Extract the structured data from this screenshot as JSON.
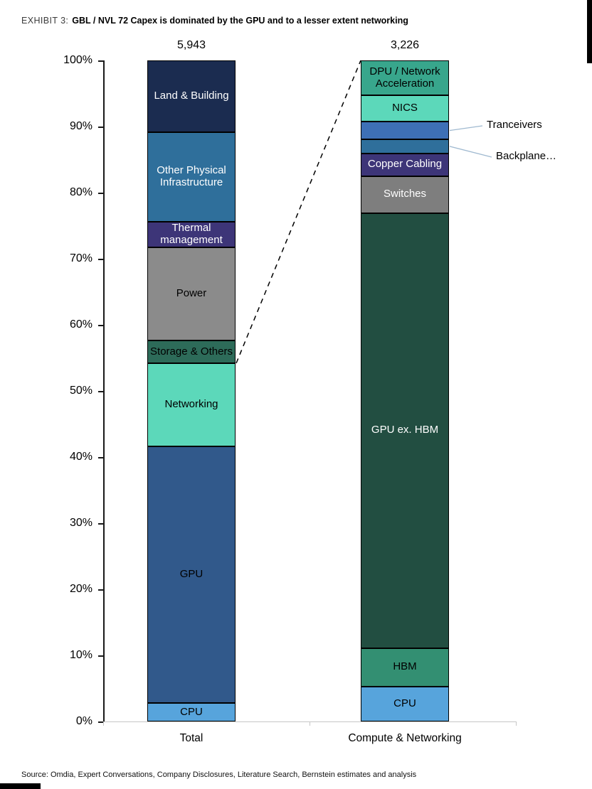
{
  "exhibit": {
    "label": "EXHIBIT 3:",
    "title": "GBL / NVL 72 Capex is dominated by the GPU and to a lesser extent networking"
  },
  "source": "Source: Omdia, Expert Conversations, Company Disclosures, Literature Search, Bernstein estimates and analysis",
  "chart_data": {
    "type": "bar",
    "variant": "stacked-100-percent",
    "title": "GBL / NVL 72 Capex is dominated by the GPU and to a lesser extent networking",
    "ylim": [
      0,
      100
    ],
    "yticks": [
      "0%",
      "10%",
      "20%",
      "30%",
      "40%",
      "50%",
      "60%",
      "70%",
      "80%",
      "90%",
      "100%"
    ],
    "grid": false,
    "legend": "none (labels inside segments)",
    "categories": [
      "Total",
      "Compute & Networking"
    ],
    "bars": [
      {
        "category": "Total",
        "total_label": "5,943",
        "segments": [
          {
            "name": "CPU",
            "label": "CPU",
            "value": 2.8,
            "color": "#57A4DC",
            "label_color": "#000000"
          },
          {
            "name": "GPU",
            "label": "GPU",
            "value": 38.8,
            "color": "#31598B",
            "label_color": "#000000"
          },
          {
            "name": "Networking",
            "label": "Networking",
            "value": 12.6,
            "color": "#5CD8BA",
            "label_color": "#000000"
          },
          {
            "name": "Storage & Others",
            "label": "Storage & Others",
            "value": 3.4,
            "color": "#2D6B59",
            "label_color": "#000000"
          },
          {
            "name": "Power",
            "label": "Power",
            "value": 14.1,
            "color": "#8B8B8B",
            "label_color": "#000000"
          },
          {
            "name": "Thermal management",
            "label": "Thermal management",
            "value": 3.9,
            "color": "#3D3578",
            "label_color": "#FFFFFF"
          },
          {
            "name": "Other Physical Infrastructure",
            "label": "Other Physical Infrastructure",
            "value": 13.5,
            "color": "#2F6F9B",
            "label_color": "#FFFFFF"
          },
          {
            "name": "Land & Building",
            "label": "Land & Building",
            "value": 10.9,
            "color": "#1B2C50",
            "label_color": "#FFFFFF"
          }
        ]
      },
      {
        "category": "Compute & Networking",
        "total_label": "3,226",
        "segments": [
          {
            "name": "CPU",
            "label": "CPU",
            "value": 5.3,
            "color": "#57A4DC",
            "label_color": "#000000"
          },
          {
            "name": "HBM",
            "label": "HBM",
            "value": 5.8,
            "color": "#338F72",
            "label_color": "#000000"
          },
          {
            "name": "GPU ex. HBM",
            "label": "GPU ex. HBM",
            "value": 65.8,
            "color": "#224E41",
            "label_color": "#FFFFFF"
          },
          {
            "name": "Switches",
            "label": "Switches",
            "value": 5.6,
            "color": "#7E7E7E",
            "label_color": "#FFFFFF"
          },
          {
            "name": "Copper Cabling",
            "label": "Copper Cabling",
            "value": 3.4,
            "color": "#3D3578",
            "label_color": "#FFFFFF"
          },
          {
            "name": "Backplane",
            "label": "",
            "value": 2.2,
            "color": "#2F6F9B",
            "label_color": "#FFFFFF"
          },
          {
            "name": "Tranceivers",
            "label": "",
            "value": 2.6,
            "color": "#3E70B6",
            "label_color": "#FFFFFF"
          },
          {
            "name": "NICS",
            "label": "NICS",
            "value": 4.0,
            "color": "#5CD8BA",
            "label_color": "#000000"
          },
          {
            "name": "DPU / Network Acceleration",
            "label": "DPU / Network Acceleration",
            "value": 5.3,
            "color": "#38A68C",
            "label_color": "#000000"
          }
        ]
      }
    ],
    "annotations": [
      {
        "text": "Tranceivers",
        "bar": 1,
        "segment": "Tranceivers"
      },
      {
        "text": "Backplane…",
        "bar": 1,
        "segment": "Backplane"
      }
    ],
    "zoom_line": {
      "from_bar": 0,
      "from_segment": "Networking",
      "to_bar": 1,
      "style": "dashed"
    },
    "colors": {
      "axis": "#1A1A1A",
      "baseline": "#C6C6C6",
      "connector": "#9FB9D0",
      "dash_line": "#000000"
    }
  }
}
